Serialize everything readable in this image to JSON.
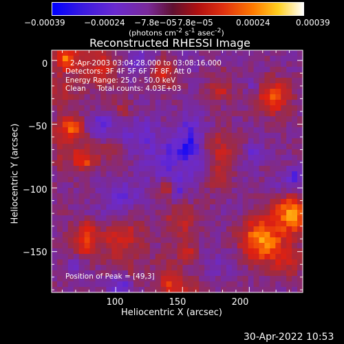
{
  "chart_data": {
    "type": "heatmap",
    "title": "Reconstructed RHESSI Image",
    "xlabel": "Heliocentric X (arcsec)",
    "ylabel": "Heliocentric Y (arcsec)",
    "xlim": [
      52,
      240
    ],
    "ylim": [
      -182,
      8
    ],
    "xticks": [
      "100",
      "150",
      "200"
    ],
    "yticks": [
      "0",
      "−50",
      "−100",
      "−150"
    ],
    "colorbar": {
      "ticks": [
        "−0.00039",
        "−0.00024",
        "−7.8e−05",
        "7.8e−05",
        "0.00024",
        "0.00039"
      ],
      "range": [
        -0.00039,
        0.00039
      ],
      "units_html": "(photons cm<sup>-2</sup> s<sup>-1</sup> asec<sup>-2</sup>)"
    },
    "annotations": {
      "time": "2-Apr-2003 03:04:28.000 to 03:08:16.000",
      "detectors": "Detectors: 3F 4F 5F 6F 7F 8F, Att 0",
      "energy": "Energy Range: 25.0 - 50.0 keV",
      "clean": "Clean     Total counts: 4.03E+03",
      "peak": "Position of Peak = [49,3]"
    }
  },
  "timestamp": "30-Apr-2022 10:53",
  "colors": {
    "background": "#000000",
    "text": "#ffffff",
    "colormap": [
      "#0000ff",
      "#6a2ad0",
      "#7a2a9a",
      "#a02a40",
      "#e02010",
      "#ff7a00",
      "#ffd020",
      "#ffffff"
    ]
  }
}
